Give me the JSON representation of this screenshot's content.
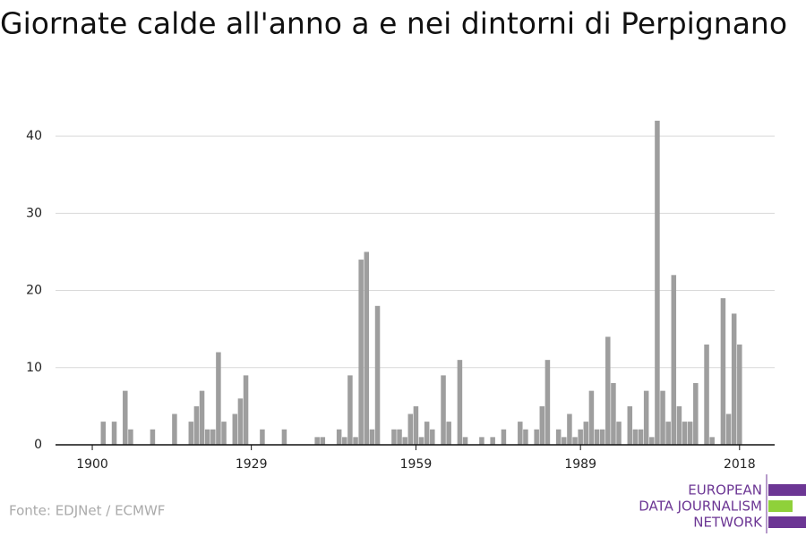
{
  "chart_data": {
    "type": "bar",
    "title": "Giornate calde all'anno a e nei dintorni di Perpignano",
    "x": [
      1900,
      1901,
      1902,
      1903,
      1904,
      1905,
      1906,
      1907,
      1908,
      1909,
      1910,
      1911,
      1912,
      1913,
      1914,
      1915,
      1916,
      1917,
      1918,
      1919,
      1920,
      1921,
      1922,
      1923,
      1924,
      1925,
      1926,
      1927,
      1928,
      1929,
      1930,
      1931,
      1932,
      1933,
      1934,
      1935,
      1936,
      1937,
      1938,
      1939,
      1940,
      1941,
      1942,
      1943,
      1944,
      1945,
      1946,
      1947,
      1948,
      1949,
      1950,
      1951,
      1952,
      1953,
      1954,
      1955,
      1956,
      1957,
      1958,
      1959,
      1960,
      1961,
      1962,
      1963,
      1964,
      1965,
      1966,
      1967,
      1968,
      1969,
      1970,
      1971,
      1972,
      1973,
      1974,
      1975,
      1976,
      1977,
      1978,
      1979,
      1980,
      1981,
      1982,
      1983,
      1984,
      1985,
      1986,
      1987,
      1988,
      1989,
      1990,
      1991,
      1992,
      1993,
      1994,
      1995,
      1996,
      1997,
      1998,
      1999,
      2000,
      2001,
      2002,
      2003,
      2004,
      2005,
      2006,
      2007,
      2008,
      2009,
      2010,
      2011,
      2012,
      2013,
      2014,
      2015,
      2016,
      2017,
      2018
    ],
    "values": [
      0,
      0,
      3,
      0,
      3,
      0,
      7,
      2,
      0,
      0,
      0,
      2,
      0,
      0,
      0,
      4,
      0,
      0,
      3,
      5,
      7,
      2,
      2,
      12,
      3,
      0,
      4,
      6,
      9,
      0,
      0,
      2,
      0,
      0,
      0,
      2,
      0,
      0,
      0,
      0,
      0,
      1,
      1,
      0,
      0,
      2,
      1,
      9,
      1,
      24,
      25,
      2,
      18,
      0,
      0,
      2,
      2,
      1,
      4,
      5,
      1,
      3,
      2,
      0,
      9,
      3,
      0,
      11,
      1,
      0,
      0,
      1,
      0,
      1,
      0,
      2,
      0,
      0,
      3,
      2,
      0,
      2,
      5,
      11,
      0,
      2,
      1,
      4,
      1,
      2,
      3,
      7,
      2,
      2,
      14,
      8,
      3,
      0,
      5,
      2,
      2,
      7,
      1,
      42,
      7,
      3,
      22,
      5,
      3,
      3,
      8,
      0,
      13,
      1,
      0,
      19,
      4,
      17,
      13
    ],
    "color": "#9e9e9e",
    "xlim": [
      1893.3,
      2024.4
    ],
    "xticks": [
      1900,
      1929,
      1959,
      1989,
      2018
    ],
    "ylim": [
      0,
      45
    ],
    "yticks": [
      0,
      10,
      20,
      30,
      40
    ],
    "grid": true
  },
  "footer": {
    "source": "Fonte: EDJNet / ECMWF",
    "logo": [
      "EUROPEAN",
      "DATA JOURNALISM",
      "NETWORK"
    ]
  }
}
